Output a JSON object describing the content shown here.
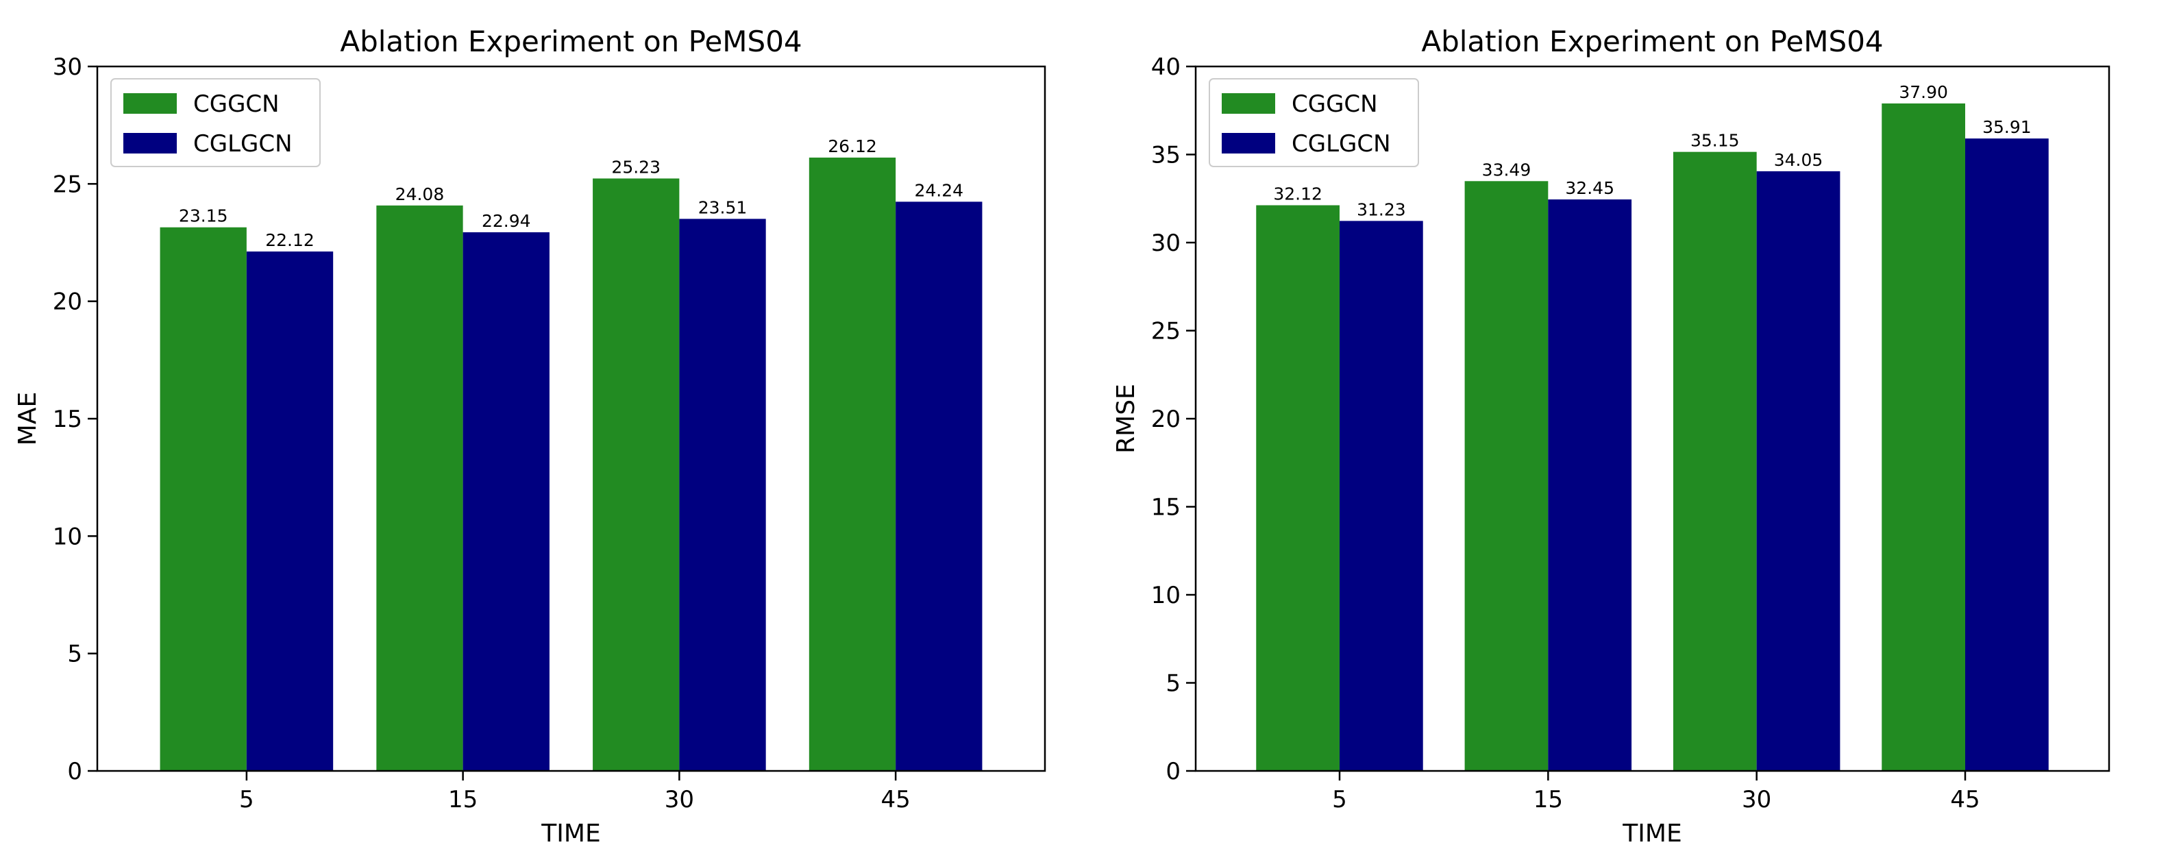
{
  "chart_data": [
    {
      "type": "bar",
      "title": "Ablation Experiment on PeMS04",
      "xlabel": "TIME",
      "ylabel": "MAE",
      "categories": [
        "5",
        "15",
        "30",
        "45"
      ],
      "series": [
        {
          "name": "CGGCN",
          "values": [
            23.15,
            24.08,
            25.23,
            26.12
          ],
          "labels": [
            "23.15",
            "24.08",
            "25.23",
            "26.12"
          ],
          "color": "#228B22"
        },
        {
          "name": "CGLGCN",
          "values": [
            22.12,
            22.94,
            23.51,
            24.24
          ],
          "labels": [
            "22.12",
            "22.94",
            "23.51",
            "24.24"
          ],
          "color": "#000080"
        }
      ],
      "ylim": [
        0,
        30
      ],
      "yticks": [
        0,
        5,
        10,
        15,
        20,
        25,
        30
      ],
      "ytick_labels": [
        "0",
        "5",
        "10",
        "15",
        "20",
        "25",
        "30"
      ],
      "legend": "top-left",
      "grid": false
    },
    {
      "type": "bar",
      "title": "Ablation Experiment on PeMS04",
      "xlabel": "TIME",
      "ylabel": "RMSE",
      "categories": [
        "5",
        "15",
        "30",
        "45"
      ],
      "series": [
        {
          "name": "CGGCN",
          "values": [
            32.12,
            33.49,
            35.15,
            37.9
          ],
          "labels": [
            "32.12",
            "33.49",
            "35.15",
            "37.90"
          ],
          "color": "#228B22"
        },
        {
          "name": "CGLGCN",
          "values": [
            31.23,
            32.45,
            34.05,
            35.91
          ],
          "labels": [
            "31.23",
            "32.45",
            "34.05",
            "35.91"
          ],
          "color": "#000080"
        }
      ],
      "ylim": [
        0,
        40
      ],
      "yticks": [
        0,
        5,
        10,
        15,
        20,
        25,
        30,
        35,
        40
      ],
      "ytick_labels": [
        "0",
        "5",
        "10",
        "15",
        "20",
        "25",
        "30",
        "35",
        "40"
      ],
      "legend": "top-left",
      "grid": false
    }
  ]
}
